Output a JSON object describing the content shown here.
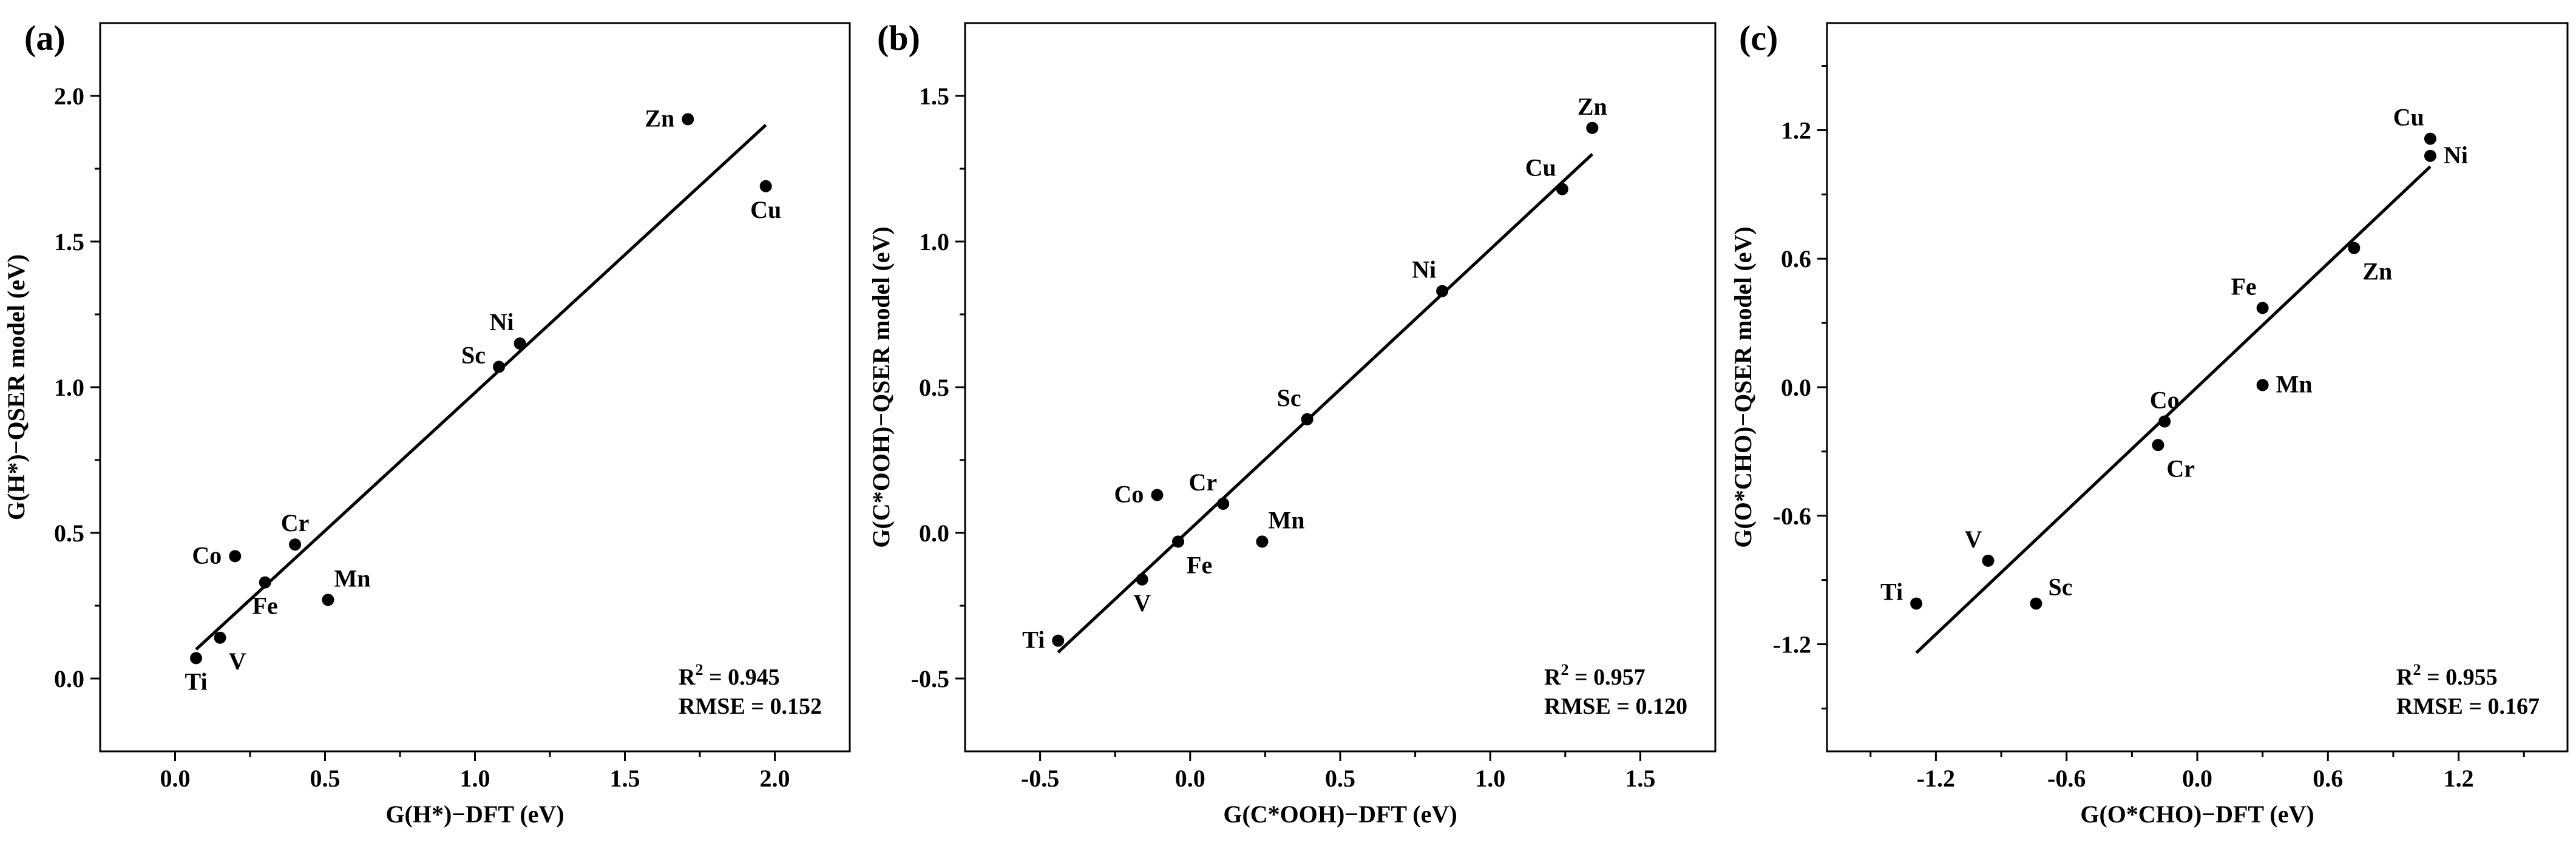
{
  "chart_data": [
    {
      "type": "scatter",
      "panel_label": "(a)",
      "xlabel": "G(H*)−DFT (eV)",
      "ylabel": "G(H*)−QSER model (eV)",
      "xlim": [
        -0.25,
        2.25
      ],
      "ylim": [
        -0.25,
        2.25
      ],
      "xticks": [
        0.0,
        0.5,
        1.0,
        1.5,
        2.0
      ],
      "xtick_labels": [
        "0.0",
        "0.5",
        "1.0",
        "1.5",
        "2.0"
      ],
      "yticks": [
        0.0,
        0.5,
        1.0,
        1.5,
        2.0
      ],
      "ytick_labels": [
        "0.0",
        "0.5",
        "1.0",
        "1.5",
        "2.0"
      ],
      "points": [
        {
          "label": "Ti",
          "x": 0.07,
          "y": 0.07,
          "anchor": "below"
        },
        {
          "label": "V",
          "x": 0.15,
          "y": 0.14,
          "anchor": "below-right"
        },
        {
          "label": "Co",
          "x": 0.2,
          "y": 0.42,
          "anchor": "left"
        },
        {
          "label": "Fe",
          "x": 0.3,
          "y": 0.33,
          "anchor": "below"
        },
        {
          "label": "Cr",
          "x": 0.4,
          "y": 0.46,
          "anchor": "above"
        },
        {
          "label": "Mn",
          "x": 0.51,
          "y": 0.27,
          "anchor": "above-right"
        },
        {
          "label": "Sc",
          "x": 1.08,
          "y": 1.07,
          "anchor": "left-above"
        },
        {
          "label": "Ni",
          "x": 1.15,
          "y": 1.15,
          "anchor": "above-left"
        },
        {
          "label": "Zn",
          "x": 1.71,
          "y": 1.92,
          "anchor": "left"
        },
        {
          "label": "Cu",
          "x": 1.97,
          "y": 1.69,
          "anchor": "below"
        }
      ],
      "fit_line": {
        "x": [
          0.07,
          1.97
        ],
        "y": [
          0.1,
          1.9
        ]
      },
      "r2_label": "R",
      "r2_sup": "2",
      "r2_value": " = 0.945",
      "rmse": "RMSE = 0.152"
    },
    {
      "type": "scatter",
      "panel_label": "(b)",
      "xlabel": "G(C*OOH)−DFT (eV)",
      "ylabel": "G(C*OOH)−QSER model (eV)",
      "xlim": [
        -0.75,
        1.75
      ],
      "ylim": [
        -0.75,
        1.75
      ],
      "xticks": [
        -0.5,
        0.0,
        0.5,
        1.0,
        1.5
      ],
      "xtick_labels": [
        "-0.5",
        "0.0",
        "0.5",
        "1.0",
        "1.5"
      ],
      "yticks": [
        -0.5,
        0.0,
        0.5,
        1.0,
        1.5
      ],
      "ytick_labels": [
        "-0.5",
        "0.0",
        "0.5",
        "1.0",
        "1.5"
      ],
      "points": [
        {
          "label": "Ti",
          "x": -0.44,
          "y": -0.37,
          "anchor": "left"
        },
        {
          "label": "V",
          "x": -0.16,
          "y": -0.16,
          "anchor": "below"
        },
        {
          "label": "Fe",
          "x": -0.04,
          "y": -0.03,
          "anchor": "below-right"
        },
        {
          "label": "Co",
          "x": -0.11,
          "y": 0.13,
          "anchor": "left"
        },
        {
          "label": "Cr",
          "x": 0.11,
          "y": 0.1,
          "anchor": "above-left"
        },
        {
          "label": "Mn",
          "x": 0.24,
          "y": -0.03,
          "anchor": "above-right"
        },
        {
          "label": "Sc",
          "x": 0.39,
          "y": 0.39,
          "anchor": "above-left"
        },
        {
          "label": "Ni",
          "x": 0.84,
          "y": 0.83,
          "anchor": "above-left"
        },
        {
          "label": "Cu",
          "x": 1.24,
          "y": 1.18,
          "anchor": "above-left"
        },
        {
          "label": "Zn",
          "x": 1.34,
          "y": 1.39,
          "anchor": "above"
        }
      ],
      "fit_line": {
        "x": [
          -0.44,
          1.34
        ],
        "y": [
          -0.41,
          1.3
        ]
      },
      "r2_label": "R",
      "r2_sup": "2",
      "r2_value": " = 0.957",
      "rmse": "RMSE = 0.120"
    },
    {
      "type": "scatter",
      "panel_label": "(c)",
      "xlabel": "G(O*CHO)−DFT (eV)",
      "ylabel": "G(O*CHO)−QSER model (eV)",
      "xlim": [
        -1.7,
        1.7
      ],
      "ylim": [
        -1.7,
        1.7
      ],
      "xticks": [
        -1.2,
        -0.6,
        0.0,
        0.6,
        1.2
      ],
      "xtick_labels": [
        "-1.2",
        "-0.6",
        "0.0",
        "0.6",
        "1.2"
      ],
      "yticks": [
        -1.2,
        -0.6,
        0.0,
        0.6,
        1.2
      ],
      "ytick_labels": [
        "-1.2",
        "-0.6",
        "0.0",
        "0.6",
        "1.2"
      ],
      "points": [
        {
          "label": "Ti",
          "x": -1.29,
          "y": -1.01,
          "anchor": "left-above"
        },
        {
          "label": "V",
          "x": -0.96,
          "y": -0.81,
          "anchor": "above-left"
        },
        {
          "label": "Sc",
          "x": -0.74,
          "y": -1.01,
          "anchor": "right-above"
        },
        {
          "label": "Cr",
          "x": -0.18,
          "y": -0.27,
          "anchor": "below-right"
        },
        {
          "label": "Co",
          "x": -0.15,
          "y": -0.16,
          "anchor": "above"
        },
        {
          "label": "Mn",
          "x": 0.3,
          "y": 0.01,
          "anchor": "right"
        },
        {
          "label": "Fe",
          "x": 0.3,
          "y": 0.37,
          "anchor": "above-left"
        },
        {
          "label": "Zn",
          "x": 0.72,
          "y": 0.65,
          "anchor": "below-right"
        },
        {
          "label": "Cu",
          "x": 1.07,
          "y": 1.16,
          "anchor": "above-left"
        },
        {
          "label": "Ni",
          "x": 1.07,
          "y": 1.08,
          "anchor": "right"
        }
      ],
      "fit_line": {
        "x": [
          -1.29,
          1.07
        ],
        "y": [
          -1.24,
          1.03
        ]
      },
      "r2_label": "R",
      "r2_sup": "2",
      "r2_value": " = 0.955",
      "rmse": "RMSE = 0.167"
    }
  ]
}
